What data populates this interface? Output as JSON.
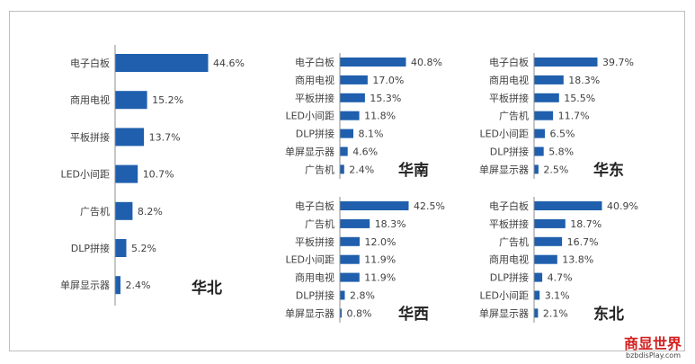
{
  "chart_data": [
    {
      "type": "bar",
      "orientation": "horizontal",
      "title": "华北",
      "categories": [
        "电子白板",
        "商用电视",
        "平板拼接",
        "LED小间距",
        "广告机",
        "DLP拼接",
        "单屏显示器"
      ],
      "values": [
        44.6,
        15.2,
        13.7,
        10.7,
        8.2,
        5.2,
        2.4
      ],
      "value_labels": [
        "44.6%",
        "15.2%",
        "13.7%",
        "10.7%",
        "8.2%",
        "5.2%",
        "2.4%"
      ]
    },
    {
      "type": "bar",
      "orientation": "horizontal",
      "title": "华南",
      "categories": [
        "电子白板",
        "商用电视",
        "平板拼接",
        "LED小间距",
        "DLP拼接",
        "单屏显示器",
        "广告机"
      ],
      "values": [
        40.8,
        17.0,
        15.3,
        11.8,
        8.1,
        4.6,
        2.4
      ],
      "value_labels": [
        "40.8%",
        "17.0%",
        "15.3%",
        "11.8%",
        "8.1%",
        "4.6%",
        "2.4%"
      ]
    },
    {
      "type": "bar",
      "orientation": "horizontal",
      "title": "华东",
      "categories": [
        "电子白板",
        "商用电视",
        "平板拼接",
        "广告机",
        "LED小间距",
        "DLP拼接",
        "单屏显示器"
      ],
      "values": [
        39.7,
        18.3,
        15.5,
        11.7,
        6.5,
        5.8,
        2.5
      ],
      "value_labels": [
        "39.7%",
        "18.3%",
        "15.5%",
        "11.7%",
        "6.5%",
        "5.8%",
        "2.5%"
      ]
    },
    {
      "type": "bar",
      "orientation": "horizontal",
      "title": "华西",
      "categories": [
        "电子白板",
        "广告机",
        "平板拼接",
        "LED小间距",
        "商用电视",
        "DLP拼接",
        "单屏显示器"
      ],
      "values": [
        42.5,
        18.3,
        12.0,
        11.9,
        11.9,
        2.8,
        0.8
      ],
      "value_labels": [
        "42.5%",
        "18.3%",
        "12.0%",
        "11.9%",
        "11.9%",
        "2.8%",
        "0.8%"
      ]
    },
    {
      "type": "bar",
      "orientation": "horizontal",
      "title": "东北",
      "categories": [
        "电子白板",
        "平板拼接",
        "广告机",
        "商用电视",
        "DLP拼接",
        "LED小间距",
        "单屏显示器"
      ],
      "values": [
        40.9,
        18.7,
        16.7,
        13.8,
        4.7,
        3.1,
        2.1
      ],
      "value_labels": [
        "40.9%",
        "18.7%",
        "16.7%",
        "13.8%",
        "4.7%",
        "3.1%",
        "2.1%"
      ]
    }
  ],
  "colors": {
    "bar": "#1f5fad",
    "axis": "#8c8c8c",
    "frame": "#bfbfbf"
  },
  "watermark": {
    "cn": "商显世界",
    "en": "bzbdisPlay.com"
  }
}
